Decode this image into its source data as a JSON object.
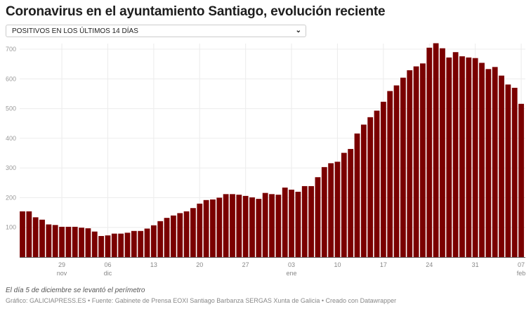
{
  "title": "Coronavirus en el ayuntamiento Santiago, evolución reciente",
  "dropdown": {
    "selected": "POSITIVOS EN LOS ÚLTIMOS 14 DÍAS",
    "icon": "chevron-down-icon"
  },
  "chart_data": {
    "type": "bar",
    "color": "#7a0000",
    "ylim": [
      0,
      720
    ],
    "yticks": [
      100,
      200,
      300,
      400,
      500,
      600,
      700
    ],
    "grid": true,
    "xticks": [
      {
        "date": "2020-11-29",
        "label": "29",
        "sublabel": "nov"
      },
      {
        "date": "2020-12-06",
        "label": "06",
        "sublabel": "dic"
      },
      {
        "date": "2020-12-13",
        "label": "13",
        "sublabel": ""
      },
      {
        "date": "2020-12-20",
        "label": "20",
        "sublabel": ""
      },
      {
        "date": "2020-12-27",
        "label": "27",
        "sublabel": ""
      },
      {
        "date": "2021-01-03",
        "label": "03",
        "sublabel": "ene"
      },
      {
        "date": "2021-01-10",
        "label": "10",
        "sublabel": ""
      },
      {
        "date": "2021-01-17",
        "label": "17",
        "sublabel": ""
      },
      {
        "date": "2021-01-24",
        "label": "24",
        "sublabel": ""
      },
      {
        "date": "2021-01-31",
        "label": "31",
        "sublabel": ""
      },
      {
        "date": "2021-02-07",
        "label": "07",
        "sublabel": "feb"
      }
    ],
    "x": [
      "2020-11-23",
      "2020-11-24",
      "2020-11-25",
      "2020-11-26",
      "2020-11-27",
      "2020-11-28",
      "2020-11-29",
      "2020-11-30",
      "2020-12-01",
      "2020-12-02",
      "2020-12-03",
      "2020-12-04",
      "2020-12-05",
      "2020-12-06",
      "2020-12-07",
      "2020-12-08",
      "2020-12-09",
      "2020-12-10",
      "2020-12-11",
      "2020-12-12",
      "2020-12-13",
      "2020-12-14",
      "2020-12-15",
      "2020-12-16",
      "2020-12-17",
      "2020-12-18",
      "2020-12-19",
      "2020-12-20",
      "2020-12-21",
      "2020-12-22",
      "2020-12-23",
      "2020-12-24",
      "2020-12-25",
      "2020-12-26",
      "2020-12-27",
      "2020-12-28",
      "2020-12-29",
      "2020-12-30",
      "2020-12-31",
      "2021-01-01",
      "2021-01-02",
      "2021-01-03",
      "2021-01-04",
      "2021-01-05",
      "2021-01-06",
      "2021-01-07",
      "2021-01-08",
      "2021-01-09",
      "2021-01-10",
      "2021-01-11",
      "2021-01-12",
      "2021-01-13",
      "2021-01-14",
      "2021-01-15",
      "2021-01-16",
      "2021-01-17",
      "2021-01-18",
      "2021-01-19",
      "2021-01-20",
      "2021-01-21",
      "2021-01-22",
      "2021-01-23",
      "2021-01-24",
      "2021-01-25",
      "2021-01-26",
      "2021-01-27",
      "2021-01-28",
      "2021-01-29",
      "2021-01-30",
      "2021-01-31",
      "2021-02-01",
      "2021-02-02",
      "2021-02-03",
      "2021-02-04",
      "2021-02-05",
      "2021-02-06",
      "2021-02-07"
    ],
    "values": [
      154,
      154,
      134,
      126,
      110,
      108,
      102,
      102,
      102,
      99,
      97,
      86,
      71,
      73,
      79,
      79,
      82,
      88,
      88,
      96,
      107,
      121,
      132,
      140,
      148,
      154,
      165,
      180,
      192,
      194,
      200,
      212,
      212,
      210,
      206,
      201,
      196,
      216,
      212,
      210,
      234,
      227,
      220,
      239,
      239,
      269,
      303,
      316,
      321,
      351,
      364,
      416,
      446,
      471,
      493,
      523,
      559,
      578,
      604,
      629,
      642,
      652,
      705,
      720,
      703,
      672,
      690,
      676,
      672,
      670,
      654,
      633,
      640,
      611,
      581,
      570,
      516
    ]
  },
  "footer": {
    "note": "El día 5 de diciembre se levantó el perímetro",
    "source": "Gráfico: GALICIAPRESS.ES • Fuente: Gabinete de Prensa EOXI Santiago Barbanza SERGAS Xunta de Galicia • Creado con Datawrapper"
  }
}
